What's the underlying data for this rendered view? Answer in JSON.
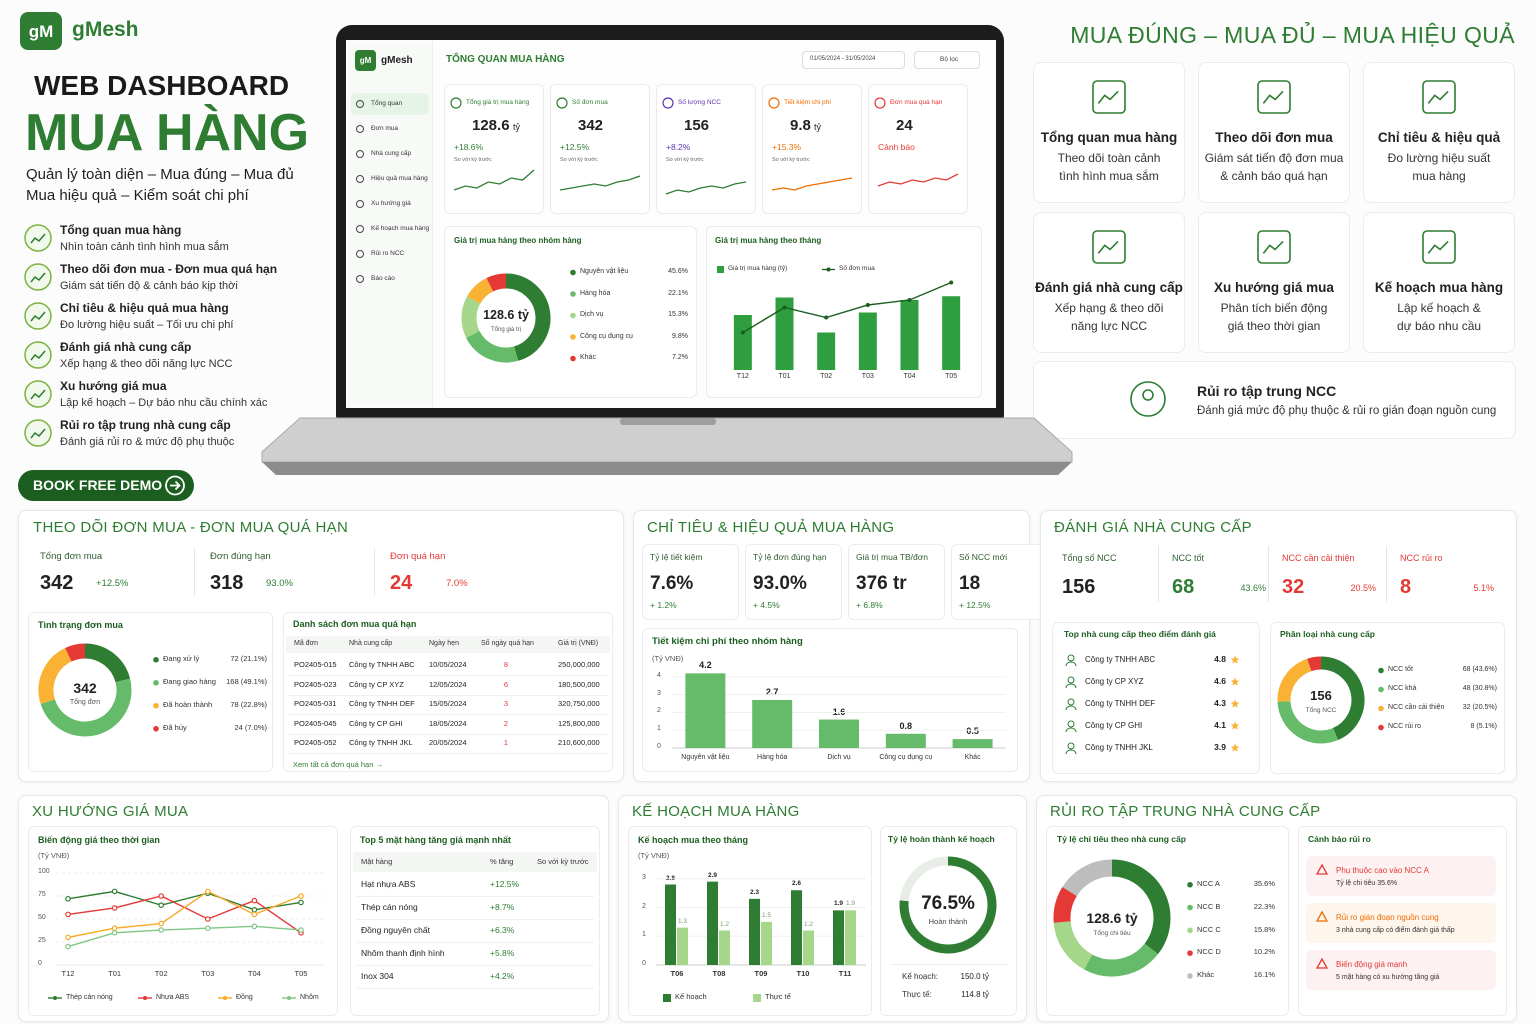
{
  "brand": {
    "logo": "gM",
    "name": "gMesh"
  },
  "hero": {
    "kicker": "WEB DASHBOARD",
    "title": "MUA HÀNG",
    "subtitle": [
      "Quản lý toàn diện – Mua đúng – Mua đủ",
      "Mua hiệu quả – Kiểm soát chi phí"
    ],
    "features": [
      {
        "title": "Tổng quan mua hàng",
        "desc": "Nhìn toàn cảnh tình hình mua sắm"
      },
      {
        "title": "Theo dõi đơn mua - Đơn mua quá hạn",
        "desc": "Giám sát tiến độ & cảnh báo kịp thời"
      },
      {
        "title": "Chỉ tiêu & hiệu quả mua hàng",
        "desc": "Đo lường hiệu suất – Tối ưu chi phí"
      },
      {
        "title": "Đánh giá nhà cung cấp",
        "desc": "Xếp hạng & theo dõi năng lực NCC"
      },
      {
        "title": "Xu hướng giá mua",
        "desc": "Lập kế hoạch – Dự báo nhu cầu chính xác"
      },
      {
        "title": "Rủi ro tập trung nhà cung cấp",
        "desc": "Đánh giá rủi ro & mức độ phụ thuộc"
      }
    ],
    "cta": "BOOK FREE DEMO"
  },
  "tagline": "MUA ĐÚNG – MUA ĐỦ – MUA HIỆU QUẢ",
  "cards": [
    {
      "title": "Tổng quan mua hàng",
      "desc": [
        "Theo dõi toàn cảnh",
        "tình hình mua sắm"
      ]
    },
    {
      "title": "Theo dõi đơn mua",
      "desc": [
        "Giám sát tiến độ đơn mua",
        "& cảnh báo quá hạn"
      ]
    },
    {
      "title": "Chỉ tiêu & hiệu quả",
      "desc": [
        "Đo lường hiệu suất",
        "mua hàng"
      ]
    },
    {
      "title": "Đánh giá nhà cung cấp",
      "desc": [
        "Xếp hạng & theo dõi",
        "năng lực NCC"
      ]
    },
    {
      "title": "Xu hướng giá mua",
      "desc": [
        "Phân tích biến động",
        "giá theo thời gian"
      ]
    },
    {
      "title": "Kế hoạch mua hàng",
      "desc": [
        "Lập kế hoạch &",
        "dự báo nhu cầu"
      ]
    }
  ],
  "risk_card": {
    "title": "Rủi ro tập trung NCC",
    "desc": "Đánh giá mức độ phụ thuộc & rủi ro gián đoạn nguồn cung"
  },
  "laptop": {
    "brand": "gMesh",
    "menu": [
      "Tổng quan",
      "Đơn mua",
      "Nhà cung cấp",
      "Hiệu quả mua hàng",
      "Xu hướng giá",
      "Kế hoạch mua hàng",
      "Rủi ro NCC",
      "Báo cáo"
    ],
    "header": "TỔNG QUAN MUA HÀNG",
    "date_range": "01/05/2024 - 31/05/2024",
    "filter": "Bộ lọc",
    "kpis": [
      {
        "label": "Tổng giá trị mua hàng",
        "value": "128.6",
        "unit": "tỷ",
        "change": "+18.6%",
        "note": "So với kỳ trước",
        "color": "#2e7d32",
        "trend": [
          3,
          4,
          3.5,
          5,
          4.5,
          6,
          5.5,
          8
        ]
      },
      {
        "label": "Số đơn mua",
        "value": "342",
        "change": "+12.5%",
        "note": "So với kỳ trước",
        "color": "#2e7d32",
        "trend": [
          3,
          3.5,
          4,
          4.5,
          4,
          5,
          5.5,
          6.5
        ]
      },
      {
        "label": "Số lượng NCC",
        "value": "156",
        "change": "+8.2%",
        "note": "So với kỳ trước",
        "color": "#5e35b1",
        "trend": [
          2,
          3,
          2.5,
          3.5,
          4,
          3.5,
          4.5,
          5
        ]
      },
      {
        "label": "Tiết kiệm chi phí",
        "value": "9.8",
        "unit": "tỷ",
        "change": "+15.3%",
        "note": "So với kỳ trước",
        "color": "#ef6c00",
        "trend": [
          3,
          3.5,
          3,
          4,
          4.5,
          5,
          5.5,
          6
        ]
      },
      {
        "label": "Đơn mua quá hạn",
        "value": "24",
        "change": "Cảnh báo",
        "color": "#e53935",
        "trend": [
          4,
          5,
          4.5,
          5.5,
          5,
          6,
          5.5,
          7
        ]
      }
    ],
    "group_chart": {
      "title": "Giá trị mua hàng theo nhóm hàng",
      "total": "128.6 tỷ",
      "total_label": "Tổng giá trị",
      "categories": [
        "Nguyên vật liệu",
        "Hàng hóa",
        "Dịch vụ",
        "Công cụ dụng cụ",
        "Khác"
      ],
      "values": [
        45.6,
        22.1,
        15.3,
        9.8,
        7.2
      ],
      "value_labels": [
        "45.6%",
        "22.1%",
        "15.3%",
        "9.8%",
        "7.2%"
      ],
      "colors": [
        "#2e7d32",
        "#66bb6a",
        "#a5d68a",
        "#f9b233",
        "#e53935"
      ]
    },
    "month_chart": {
      "title": "Giá trị mua hàng theo tháng",
      "categories": [
        "T12",
        "T01",
        "T02",
        "T03",
        "T04",
        "T05"
      ],
      "bars": {
        "name": "Giá trị mua hàng (tỷ)",
        "color": "#2e9e3e",
        "values": [
          44,
          58,
          30,
          46,
          56,
          59
        ]
      },
      "line": {
        "name": "Số đơn mua",
        "color": "#1b5e20",
        "values": [
          30,
          50,
          42,
          52,
          56,
          70
        ]
      }
    }
  },
  "po": {
    "title": "THEO DÕI ĐƠN MUA - ĐƠN MUA QUÁ HẠN",
    "stats": [
      {
        "label": "Tổng đơn mua",
        "value": "342",
        "pct": "+12.5%",
        "color": "#2e7d32"
      },
      {
        "label": "Đơn đúng hạn",
        "value": "318",
        "pct": "93.0%",
        "color": "#2e7d32"
      },
      {
        "label": "Đơn quá hạn",
        "value": "24",
        "pct": "7.0%",
        "color": "#e53935"
      }
    ],
    "status": {
      "title": "Tình trạng đơn mua",
      "total": "342",
      "total_label": "Tổng đơn",
      "categories": [
        "Đang xử lý",
        "Đang giao hàng",
        "Đã hoàn thành",
        "Đã hủy"
      ],
      "values": [
        72,
        168,
        78,
        24
      ],
      "value_labels": [
        "72 (21.1%)",
        "168 (49.1%)",
        "78 (22.8%)",
        "24 (7.0%)"
      ],
      "colors": [
        "#2e7d32",
        "#66bb6a",
        "#f9b233",
        "#e53935"
      ]
    },
    "overdue": {
      "title": "Danh sách đơn mua quá hạn",
      "columns": [
        "Mã đơn",
        "Nhà cung cấp",
        "Ngày hẹn",
        "Số ngày quá hạn",
        "Giá trị (VNĐ)"
      ],
      "rows": [
        [
          "PO2405-015",
          "Công ty TNHH ABC",
          "10/05/2024",
          "8",
          "250,000,000"
        ],
        [
          "PO2405-023",
          "Công ty CP XYZ",
          "12/05/2024",
          "6",
          "180,500,000"
        ],
        [
          "PO2405-031",
          "Công ty TNHH DEF",
          "15/05/2024",
          "3",
          "320,750,000"
        ],
        [
          "PO2405-045",
          "Công ty CP GHI",
          "18/05/2024",
          "2",
          "125,800,000"
        ],
        [
          "PO2405-052",
          "Công ty TNHH JKL",
          "20/05/2024",
          "1",
          "210,600,000"
        ]
      ],
      "link": "Xem tất cả đơn quá hạn →"
    }
  },
  "kpi": {
    "title": "CHỈ TIÊU & HIỆU QUẢ MUA HÀNG",
    "stats": [
      {
        "label": "Tỷ lệ tiết kiệm",
        "value": "7.6%",
        "change": "+ 1.2%"
      },
      {
        "label": "Tỷ lệ đơn đúng hạn",
        "value": "93.0%",
        "change": "+ 4.5%"
      },
      {
        "label": "Giá trị mua TB/đơn",
        "value": "376 tr",
        "change": "+ 6.8%"
      },
      {
        "label": "Số NCC mới",
        "value": "18",
        "change": "+ 12.5%"
      }
    ],
    "savings": {
      "title": "Tiết kiệm chi phí theo nhóm hàng",
      "unit": "(Tỷ VNĐ)",
      "categories": [
        "Nguyên vật liệu",
        "Hàng hóa",
        "Dịch vụ",
        "Công cụ dụng cụ",
        "Khác"
      ],
      "values": [
        4.2,
        2.7,
        1.6,
        0.8,
        0.5
      ],
      "color": "#66bb6a",
      "ylim": [
        0,
        4.5
      ],
      "yticks": [
        0,
        1,
        2,
        3,
        4
      ]
    }
  },
  "supplier": {
    "title": "ĐÁNH GIÁ NHÀ CUNG CẤP",
    "stats": [
      {
        "label": "Tổng số NCC",
        "value": "156",
        "color": "#222222"
      },
      {
        "label": "NCC tốt",
        "value": "68",
        "pct": "43.6%",
        "color": "#2e7d32"
      },
      {
        "label": "NCC cần cải thiện",
        "value": "32",
        "pct": "20.5%",
        "color": "#e53935"
      },
      {
        "label": "NCC rủi ro",
        "value": "8",
        "pct": "5.1%",
        "color": "#e53935"
      }
    ],
    "top": {
      "title": "Top nhà cung cấp theo điểm đánh giá",
      "rows": [
        {
          "name": "Công ty TNHH ABC",
          "score": "4.8"
        },
        {
          "name": "Công ty CP XYZ",
          "score": "4.6"
        },
        {
          "name": "Công ty TNHH DEF",
          "score": "4.3"
        },
        {
          "name": "Công ty CP GHI",
          "score": "4.1"
        },
        {
          "name": "Công ty TNHH JKL",
          "score": "3.9"
        }
      ]
    },
    "classes": {
      "title": "Phân loại nhà cung cấp",
      "total": "156",
      "total_label": "Tổng NCC",
      "categories": [
        "NCC tốt",
        "NCC khá",
        "NCC cần cải thiện",
        "NCC rủi ro"
      ],
      "values": [
        68,
        48,
        32,
        8
      ],
      "value_labels": [
        "68 (43.6%)",
        "48 (30.8%)",
        "32 (20.5%)",
        "8 (5.1%)"
      ],
      "colors": [
        "#2e7d32",
        "#66bb6a",
        "#f9b233",
        "#e53935"
      ]
    }
  },
  "trend": {
    "title": "XU HƯỚNG GIÁ MUA",
    "chart": {
      "title": "Biến động giá theo thời gian",
      "unit": "(Tỷ VNĐ)",
      "categories": [
        "T12",
        "T01",
        "T02",
        "T03",
        "T04",
        "T05"
      ],
      "ylim": [
        0,
        100
      ],
      "yticks": [
        0,
        25,
        50,
        75,
        100
      ],
      "series": [
        {
          "name": "Thép cán nóng",
          "color": "#2e7d32",
          "values": [
            72,
            80,
            65,
            78,
            60,
            68
          ]
        },
        {
          "name": "Nhựa ABS",
          "color": "#e53935",
          "values": [
            55,
            62,
            75,
            50,
            70,
            35
          ]
        },
        {
          "name": "Đồng",
          "color": "#f9a825",
          "values": [
            30,
            40,
            45,
            80,
            55,
            75
          ]
        },
        {
          "name": "Nhôm",
          "color": "#81c784",
          "values": [
            20,
            35,
            38,
            40,
            42,
            38
          ]
        }
      ]
    },
    "top": {
      "title": "Top 5 mặt hàng tăng giá mạnh nhất",
      "columns": [
        "Mặt hàng",
        "% tăng",
        "So với kỳ trước"
      ],
      "rows": [
        [
          "Hạt nhựa ABS",
          "+12.5%"
        ],
        [
          "Thép cán nóng",
          "+8.7%"
        ],
        [
          "Đồng nguyên chất",
          "+6.3%"
        ],
        [
          "Nhôm thanh định hình",
          "+5.8%"
        ],
        [
          "Inox 304",
          "+4.2%"
        ]
      ]
    }
  },
  "plan": {
    "title": "KẾ HOẠCH MUA HÀNG",
    "chart": {
      "title": "Kế hoạch mua theo tháng",
      "unit": "(Tỷ VNĐ)",
      "categories": [
        "T06",
        "T08",
        "T09",
        "T10",
        "T11"
      ],
      "ylim": [
        0,
        3.2
      ],
      "yticks": [
        0,
        1,
        2,
        3
      ],
      "series": [
        {
          "name": "Kế hoạch",
          "color": "#2e7d32",
          "values": [
            2.8,
            2.9,
            2.3,
            2.6,
            1.9
          ]
        },
        {
          "name": "Thực tế",
          "color": "#a5d68a",
          "values": [
            1.3,
            1.2,
            1.5,
            1.2,
            1.9
          ]
        }
      ]
    },
    "completion": {
      "title": "Tỷ lệ hoàn thành kế hoạch",
      "value": 76.5,
      "value_label": "76.5%",
      "label": "Hoàn thành",
      "color": "#2e7d32",
      "rows": [
        {
          "label": "Kế hoạch:",
          "value": "150.0 tỷ"
        },
        {
          "label": "Thực tế:",
          "value": "114.8 tỷ"
        }
      ]
    }
  },
  "risk": {
    "title": "RỦI RO TẬP TRUNG NHÀ CUNG CẤP",
    "share": {
      "title": "Tỷ lệ chi tiêu theo nhà cung cấp",
      "total": "128.6 tỷ",
      "total_label": "Tổng chi tiêu",
      "categories": [
        "NCC A",
        "NCC B",
        "NCC C",
        "NCC D",
        "Khác"
      ],
      "values": [
        35.6,
        22.3,
        15.8,
        10.2,
        16.1
      ],
      "value_labels": [
        "35.6%",
        "22.3%",
        "15.8%",
        "10.2%",
        "16.1%"
      ],
      "colors": [
        "#2e7d32",
        "#66bb6a",
        "#a5d68a",
        "#e53935",
        "#bdbdbd"
      ]
    },
    "alerts": {
      "title": "Cảnh báo rủi ro",
      "items": [
        {
          "title": "Phụ thuộc cao vào NCC A",
          "desc": "Tỷ lệ chi tiêu 35.6%",
          "color": "#e53935"
        },
        {
          "title": "Rủi ro gián đoạn nguồn cung",
          "desc": "3 nhà cung cấp có điểm đánh giá thấp",
          "color": "#ef6c00"
        },
        {
          "title": "Biến động giá mạnh",
          "desc": "5 mặt hàng có xu hướng tăng giá",
          "color": "#e53935"
        }
      ]
    }
  }
}
